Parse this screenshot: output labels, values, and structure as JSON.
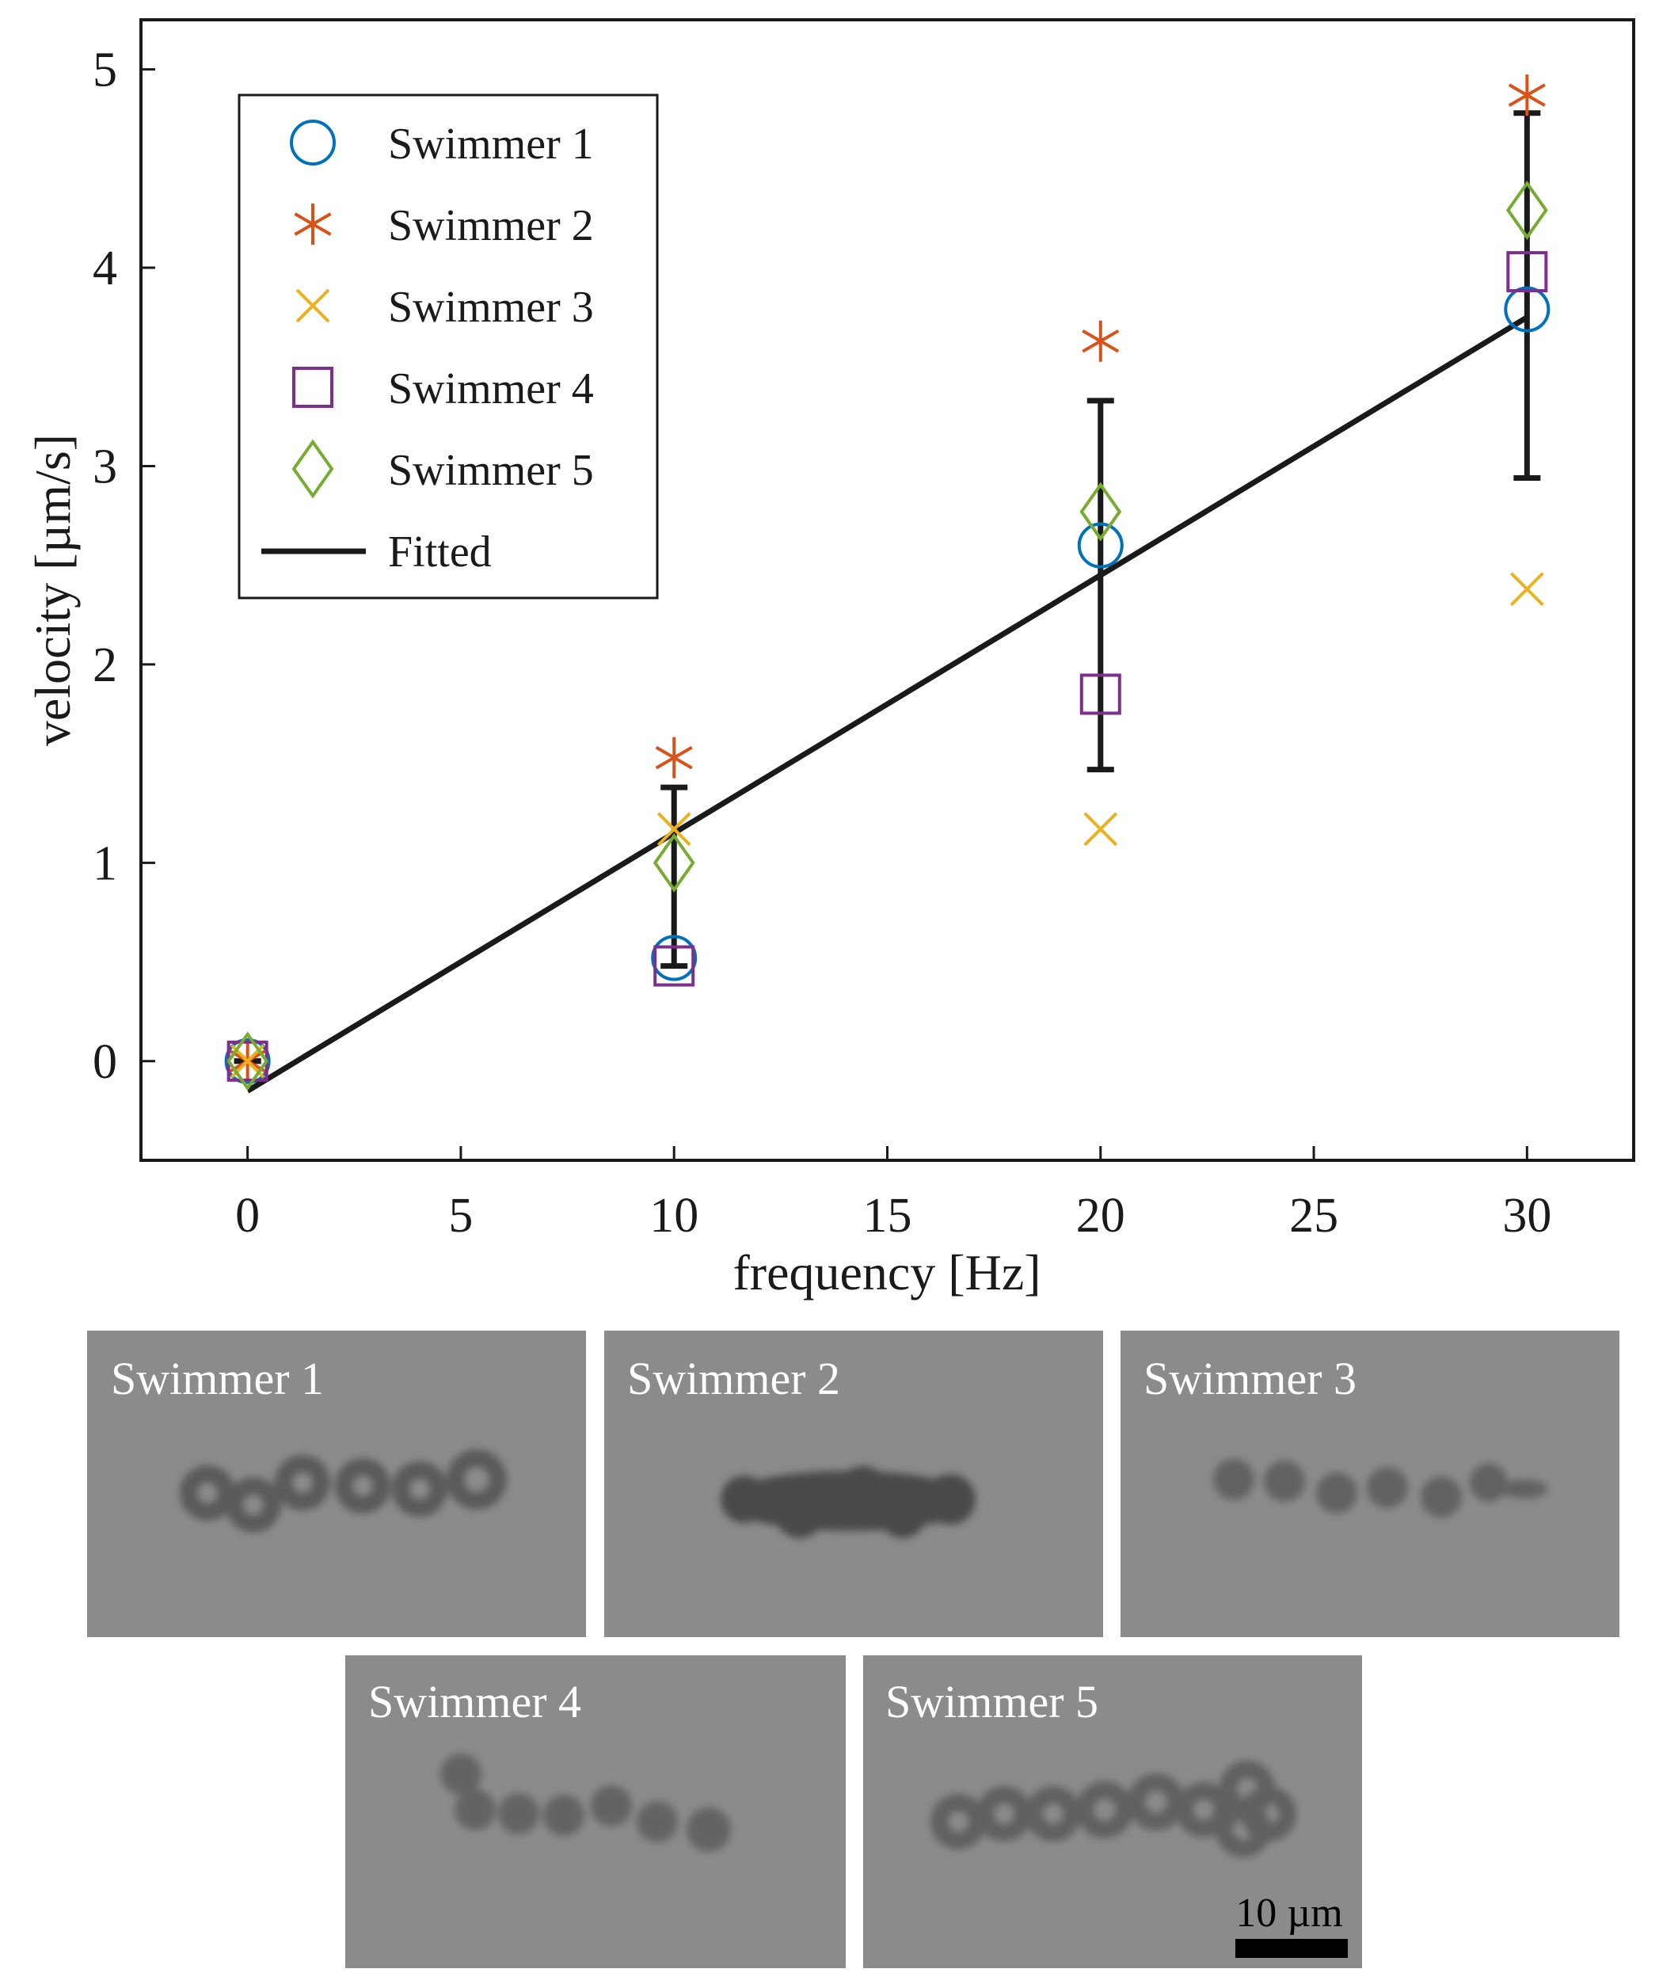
{
  "chart_data": {
    "type": "scatter",
    "xlabel": "frequency [Hz]",
    "ylabel": "velocity [µm/s]",
    "xlim": [
      -2.5,
      32.5
    ],
    "ylim": [
      -0.5,
      5.25
    ],
    "xticks": [
      "0",
      "5",
      "10",
      "15",
      "20",
      "25",
      "30"
    ],
    "yticks": [
      "0",
      "1",
      "2",
      "3",
      "4",
      "5"
    ],
    "grid": false,
    "legend_position": "top-left",
    "series": [
      {
        "name": "Swimmer 1",
        "marker": "circle",
        "color": "#0072bd",
        "x": [
          0,
          10,
          20,
          30
        ],
        "y": [
          0.0,
          0.52,
          2.6,
          3.79
        ]
      },
      {
        "name": "Swimmer 2",
        "marker": "asterisk",
        "color": "#d95319",
        "x": [
          0,
          10,
          20,
          30
        ],
        "y": [
          0.0,
          1.53,
          3.63,
          4.87
        ]
      },
      {
        "name": "Swimmer 3",
        "marker": "x",
        "color": "#edb120",
        "x": [
          0,
          10,
          20,
          30
        ],
        "y": [
          0.0,
          1.17,
          1.17,
          2.38
        ]
      },
      {
        "name": "Swimmer 4",
        "marker": "square",
        "color": "#7e2f8e",
        "x": [
          0,
          10,
          20,
          30
        ],
        "y": [
          0.0,
          0.48,
          1.85,
          3.98
        ]
      },
      {
        "name": "Swimmer 5",
        "marker": "diamond",
        "color": "#77ac30",
        "x": [
          0,
          10,
          20,
          30
        ],
        "y": [
          0.0,
          1.0,
          2.77,
          4.29
        ]
      }
    ],
    "fitted": {
      "name": "Fitted",
      "color": "#1a1a1a",
      "x": [
        0,
        30
      ],
      "y": [
        -0.15,
        3.75
      ]
    },
    "error_bars": {
      "color": "#1a1a1a",
      "x": [
        0,
        10,
        20,
        30
      ],
      "y": [
        0.0,
        0.94,
        2.4,
        3.86
      ],
      "lower": [
        0.0,
        0.48,
        1.47,
        2.94
      ],
      "upper": [
        0.0,
        1.38,
        3.33,
        4.78
      ]
    }
  },
  "micrographs": [
    {
      "label": "Swimmer 1"
    },
    {
      "label": "Swimmer 2"
    },
    {
      "label": "Swimmer 3"
    },
    {
      "label": "Swimmer 4"
    },
    {
      "label": "Swimmer 5",
      "scale_bar": "10 µm"
    }
  ]
}
